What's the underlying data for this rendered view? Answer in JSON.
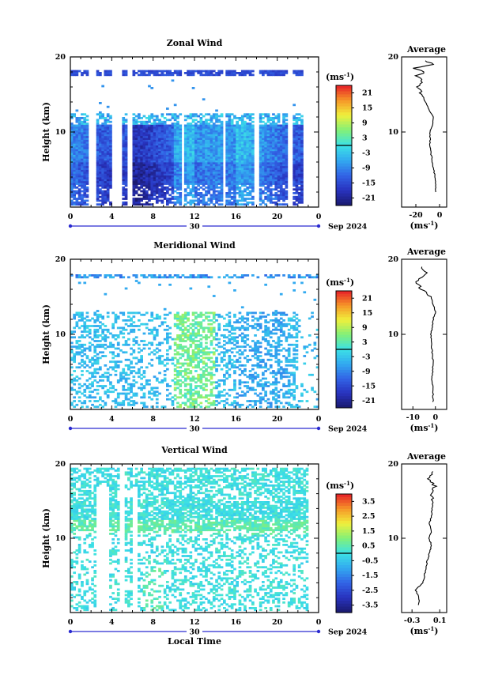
{
  "chart_data": [
    {
      "type": "heatmap",
      "title": "Zonal Wind",
      "ylabel": "Height (km)",
      "x_ticks": [
        "0",
        "4",
        "8",
        "12",
        "16",
        "20",
        "0"
      ],
      "y_ticks": [
        "10",
        "20"
      ],
      "date_center": "30",
      "date_right": "Sep 2024",
      "colorbar": {
        "unit": "(ms",
        "unit_sup": "-1",
        "unit_close": ")",
        "ticks": [
          "21",
          "15",
          "9",
          "3",
          "-3",
          "-9",
          "-15",
          "-21"
        ],
        "range": [
          -24,
          24
        ]
      },
      "profile": {
        "title": "Average",
        "y_ticks": [
          "10",
          "20"
        ],
        "x_ticks": [
          "-20",
          "0"
        ],
        "x_range": [
          -32,
          6
        ],
        "xlabel": "(ms",
        "xlabel_sup": "-1",
        "xlabel_close": ")",
        "heights": [
          2,
          4,
          6,
          8,
          10,
          11,
          12,
          13,
          14,
          15,
          16,
          17,
          17.5,
          18,
          18.5,
          19,
          19.5
        ],
        "values": [
          -3,
          -4,
          -6,
          -8,
          -8,
          -6,
          -5,
          -9,
          -12,
          -15,
          -18,
          -14,
          -20,
          -12,
          -22,
          -5,
          -12
        ]
      }
    },
    {
      "type": "heatmap",
      "title": "Meridional Wind",
      "ylabel": "Height (km)",
      "x_ticks": [
        "0",
        "4",
        "8",
        "12",
        "16",
        "20",
        "0"
      ],
      "y_ticks": [
        "10",
        "20"
      ],
      "date_center": "30",
      "date_right": "Sep 2024",
      "colorbar": {
        "unit": "(ms",
        "unit_sup": "-1",
        "unit_close": ")",
        "ticks": [
          "21",
          "15",
          "9",
          "3",
          "-3",
          "-9",
          "-15",
          "-21"
        ],
        "range": [
          -24,
          24
        ]
      },
      "profile": {
        "title": "Average",
        "y_ticks": [
          "10",
          "20"
        ],
        "x_ticks": [
          "-10",
          "0"
        ],
        "x_range": [
          -15,
          5
        ],
        "xlabel": "(ms",
        "xlabel_sup": "-1",
        "xlabel_close": ")",
        "heights": [
          1,
          2,
          4,
          6,
          8,
          10,
          12,
          13,
          14,
          15,
          16,
          17,
          18,
          19
        ],
        "values": [
          -1,
          -1,
          -1.5,
          -1,
          -1.5,
          -2,
          -1,
          0,
          -1,
          -2,
          -6,
          -9,
          -4,
          -6
        ]
      }
    },
    {
      "type": "heatmap",
      "title": "Vertical Wind",
      "ylabel": "Height (km)",
      "xlabel": "Local Time",
      "x_ticks": [
        "0",
        "4",
        "8",
        "12",
        "16",
        "20",
        "0"
      ],
      "y_ticks": [
        "10",
        "20"
      ],
      "date_center": "30",
      "date_right": "Sep 2024",
      "colorbar": {
        "unit": "(ms",
        "unit_sup": "-1",
        "unit_close": ")",
        "ticks": [
          "3.5",
          "2.5",
          "1.5",
          "0.5",
          "-0.5",
          "-1.5",
          "-2.5",
          "-3.5"
        ],
        "range": [
          -4,
          4
        ]
      },
      "profile": {
        "title": "Average",
        "y_ticks": [
          "10",
          "20"
        ],
        "x_ticks": [
          "-0.3",
          "0.1"
        ],
        "x_range": [
          -0.45,
          0.2
        ],
        "xlabel": "(ms",
        "xlabel_sup": "-1",
        "xlabel_close": ")",
        "heights": [
          1,
          2,
          3,
          4,
          5,
          6,
          7,
          8,
          9,
          10,
          11,
          12,
          13,
          14,
          15,
          16,
          17,
          18,
          19
        ],
        "values": [
          -0.2,
          -0.2,
          -0.25,
          -0.15,
          -0.12,
          -0.1,
          -0.08,
          -0.05,
          -0.02,
          -0.05,
          -0.02,
          -0.05,
          -0.02,
          -0.01,
          0.0,
          -0.02,
          0.03,
          -0.05,
          0.0
        ]
      }
    }
  ]
}
